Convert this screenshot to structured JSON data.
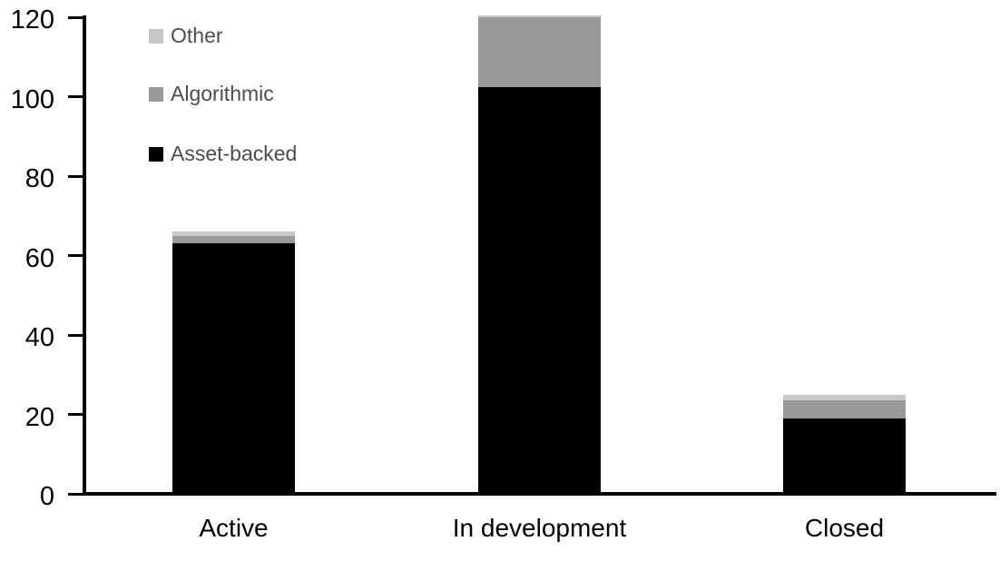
{
  "chart_data": {
    "type": "bar",
    "stacked": true,
    "title": "",
    "xlabel": "",
    "ylabel": "",
    "categories": [
      "Active",
      "In development",
      "Closed"
    ],
    "series": [
      {
        "name": "Asset-backed",
        "color": "#000000",
        "values": [
          63,
          102.5,
          19
        ]
      },
      {
        "name": "Algorithmic",
        "color": "#999999",
        "values": [
          2,
          17.5,
          4.5
        ]
      },
      {
        "name": "Other",
        "color": "#c8c8c8",
        "values": [
          1,
          0.5,
          1.5
        ]
      }
    ],
    "totals": [
      66,
      120.5,
      25
    ],
    "legend_order": [
      "Other",
      "Algorithmic",
      "Asset-backed"
    ],
    "legend_position": "top-left",
    "y_axis": {
      "min": 0,
      "max": 120,
      "tick_step": 20,
      "ticks": [
        "0",
        "20",
        "40",
        "60",
        "80",
        "100",
        "120"
      ]
    },
    "grid": false,
    "colors": {
      "axis": "#000000",
      "tick_label": "#000000",
      "category_label": "#000000",
      "legend_text": "#4d4d4d",
      "background": "#ffffff"
    }
  }
}
